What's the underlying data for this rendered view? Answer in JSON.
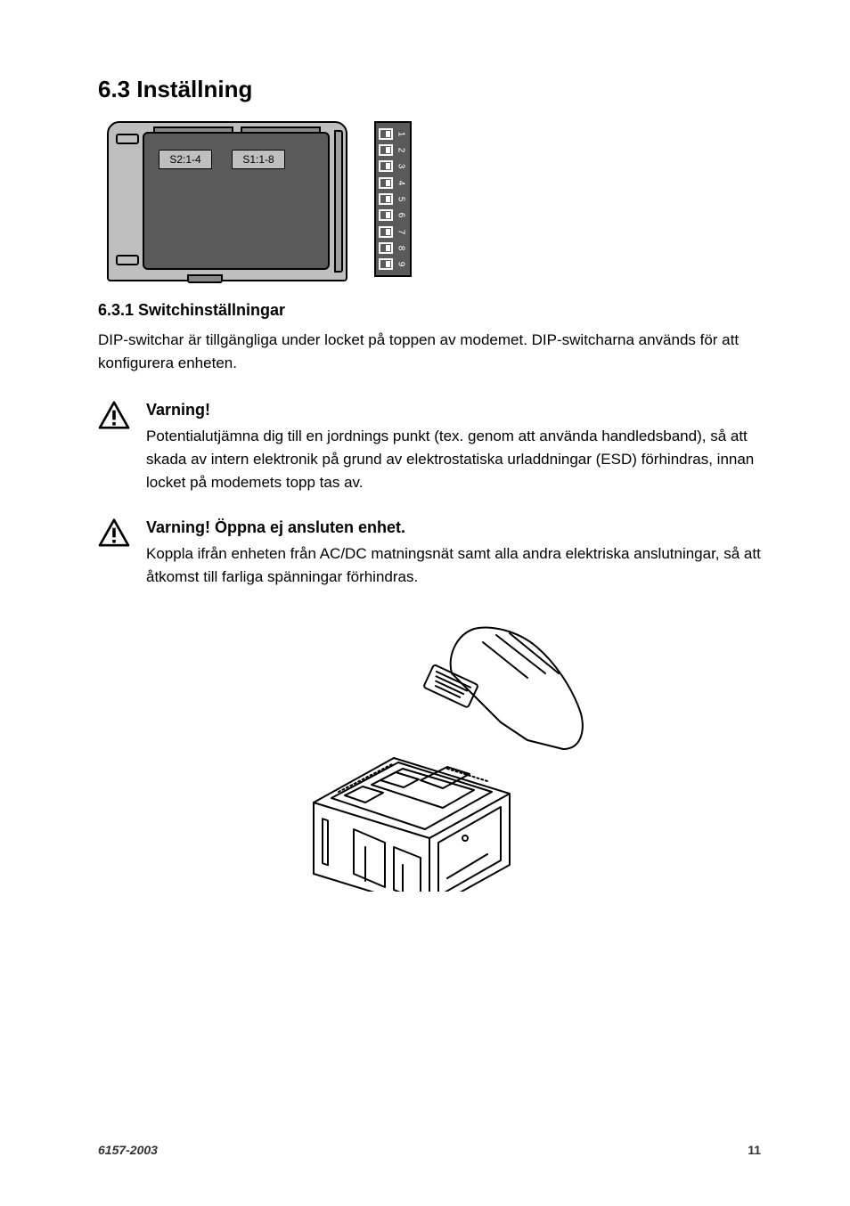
{
  "heading": "6.3  Inställning",
  "device": {
    "label_s2": "S2:1-4",
    "label_s1": "S1:1-8",
    "dip_count": 9,
    "colors": {
      "body": "#bfbfbf",
      "inner": "#5a5a5a",
      "outline": "#000000"
    }
  },
  "subheading": "6.3.1  Switchinställningar",
  "paragraph": "DIP-switchar är tillgängliga under locket på toppen av modemet. DIP-switcharna används för att konfigurera enheten.",
  "warning1": {
    "title": "Varning!",
    "text": "Potentialutjämna dig till en jordnings punkt (tex. genom att använda handledsband), så att skada av intern elektronik på grund av elektrostatiska urladdningar (ESD) förhindras, innan locket på modemets topp tas av."
  },
  "warning2": {
    "title": "Varning! Öppna ej ansluten enhet.",
    "text": "Koppla ifrån enheten från AC/DC matningsnät samt alla andra elektriska anslutningar, så att åtkomst till farliga spänningar förhindras."
  },
  "footer": {
    "doc_id": "6157-2003",
    "page": "11"
  }
}
